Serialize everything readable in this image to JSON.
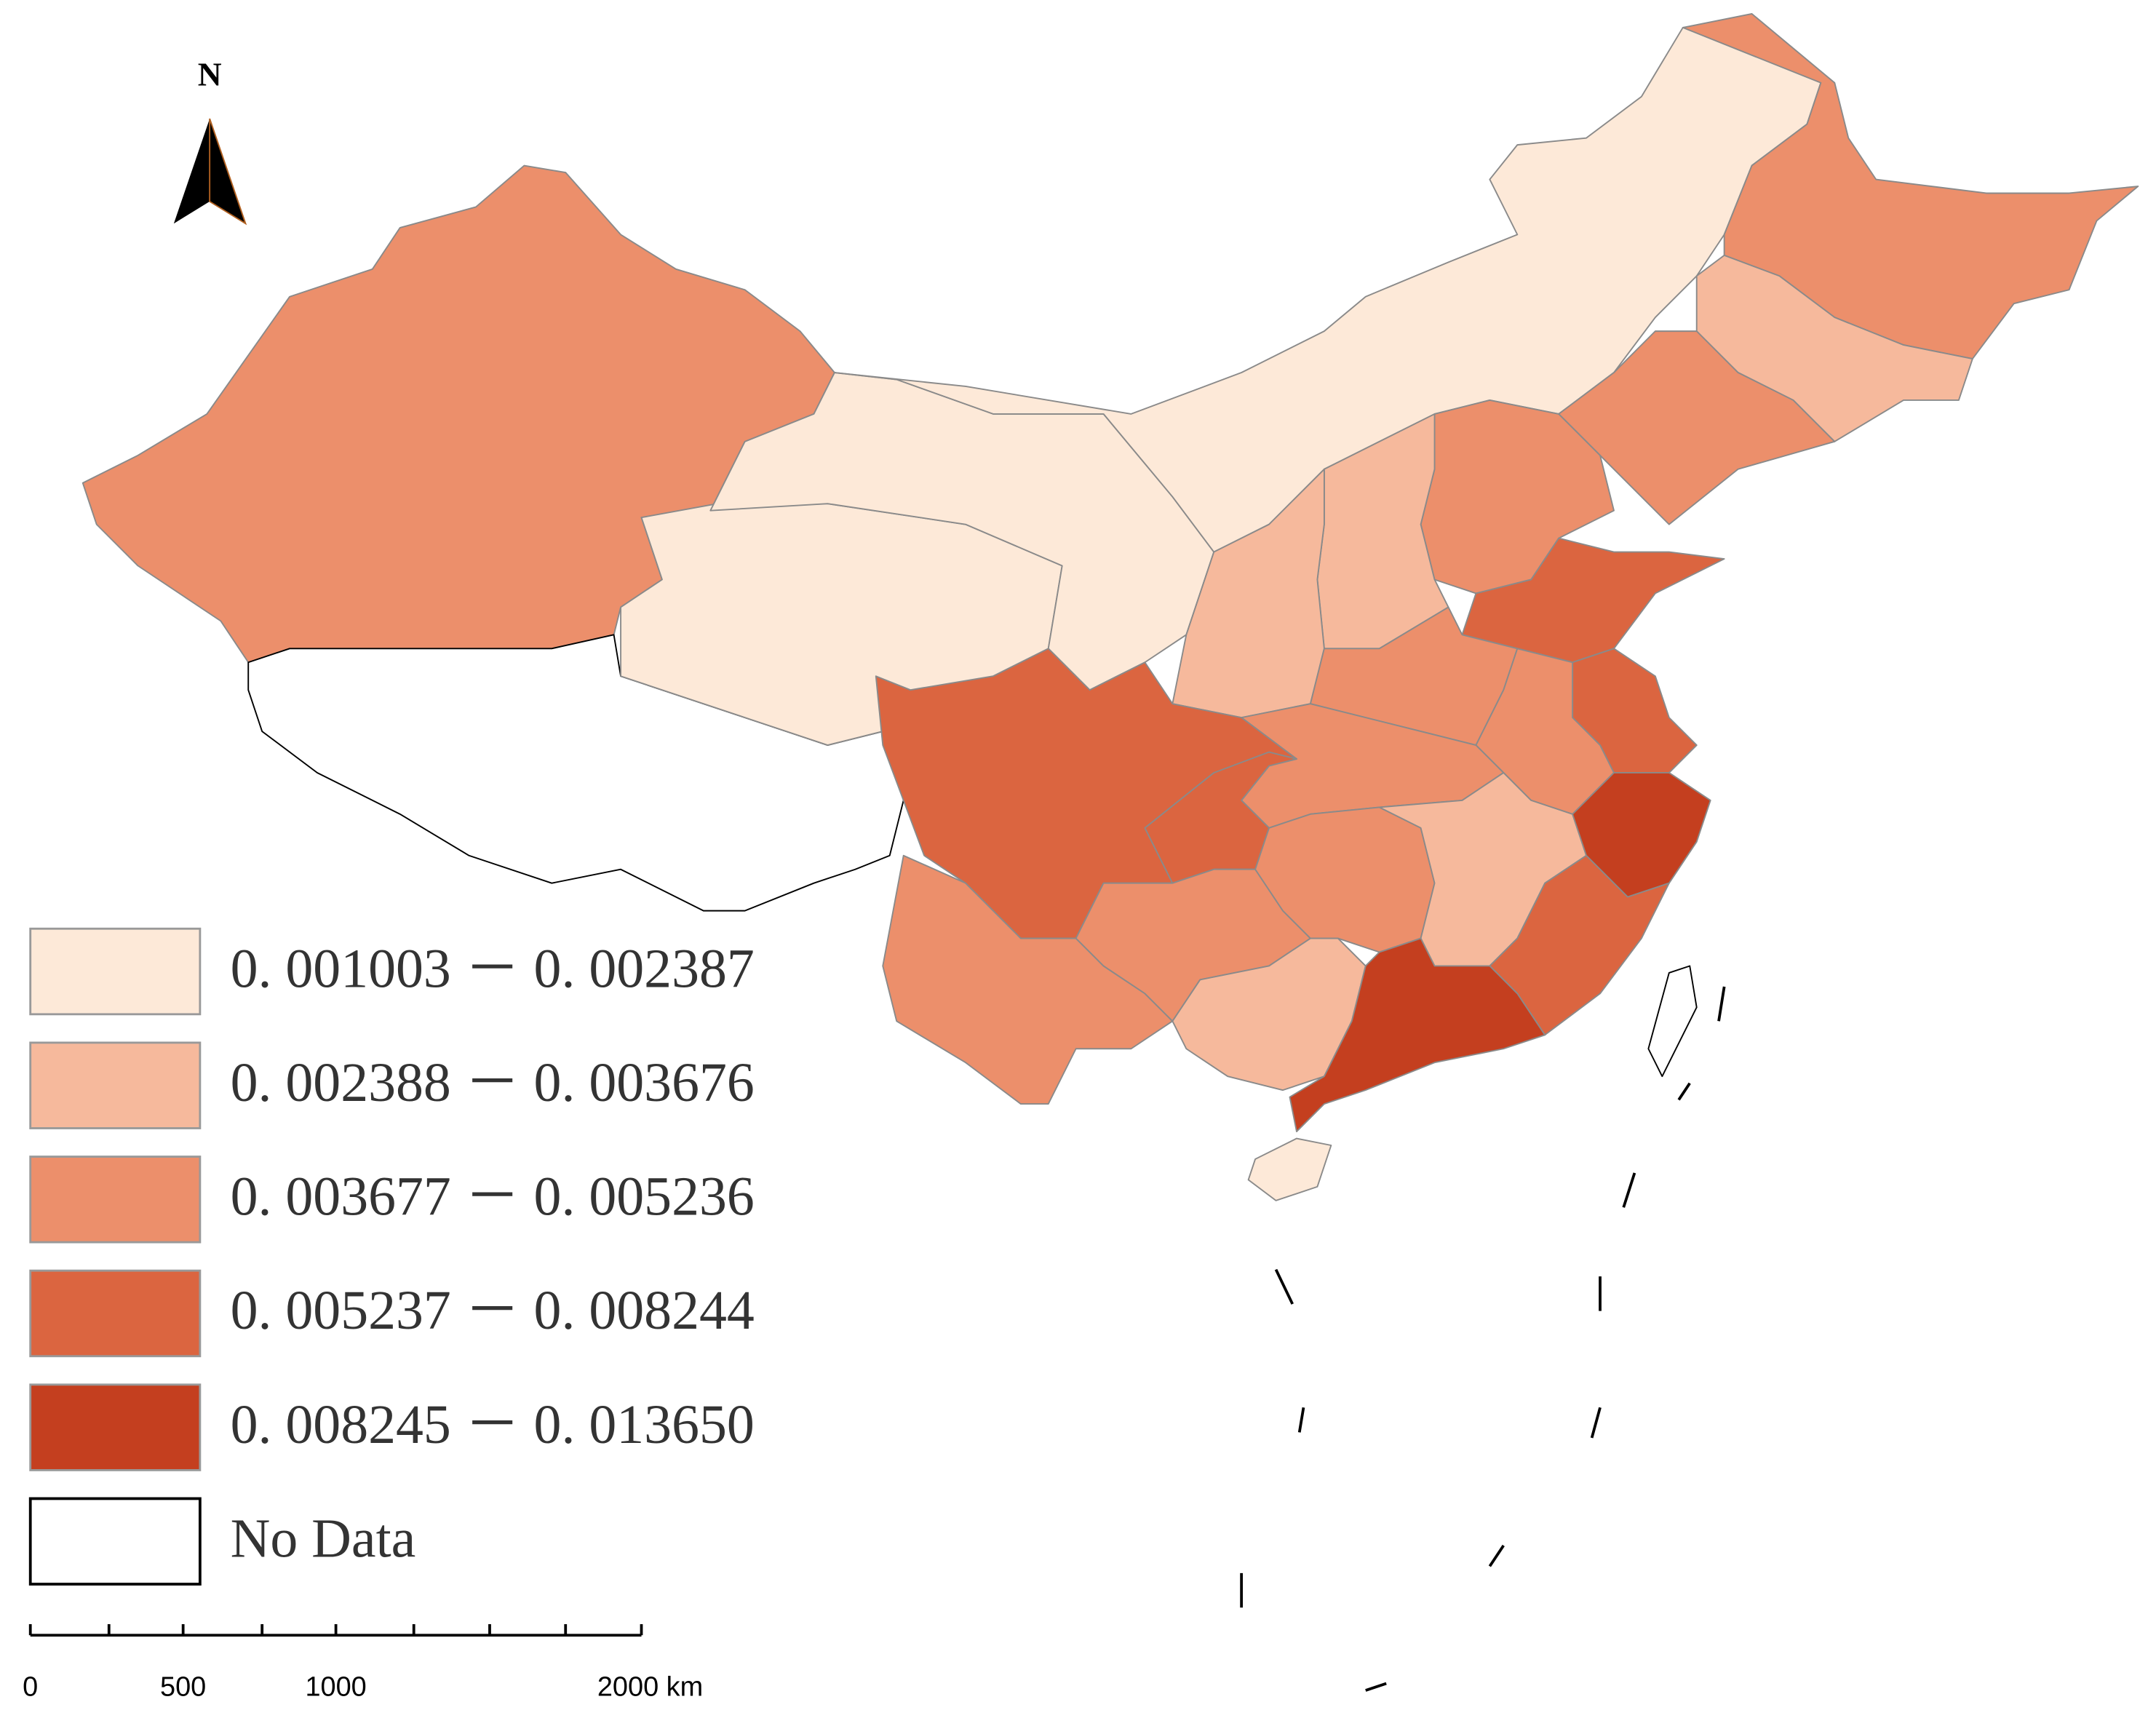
{
  "north_label": "N",
  "legend": [
    {
      "label": "0. 001003 － 0. 002387",
      "color": "#fde9d8"
    },
    {
      "label": "0. 002388 － 0. 003676",
      "color": "#f6b99c"
    },
    {
      "label": "0. 003677 － 0. 005236",
      "color": "#ec8f6b"
    },
    {
      "label": "0. 005237 － 0. 008244",
      "color": "#db6540"
    },
    {
      "label": "0. 008245 － 0. 013650",
      "color": "#c43f1f"
    }
  ],
  "no_data": {
    "label": "No Data",
    "color": "#ffffff"
  },
  "scale_bar": {
    "xlim": [
      0,
      2000
    ],
    "ticks": [
      0,
      500,
      1000,
      {
        "value": 2000,
        "label": "2000 km"
      }
    ]
  }
}
